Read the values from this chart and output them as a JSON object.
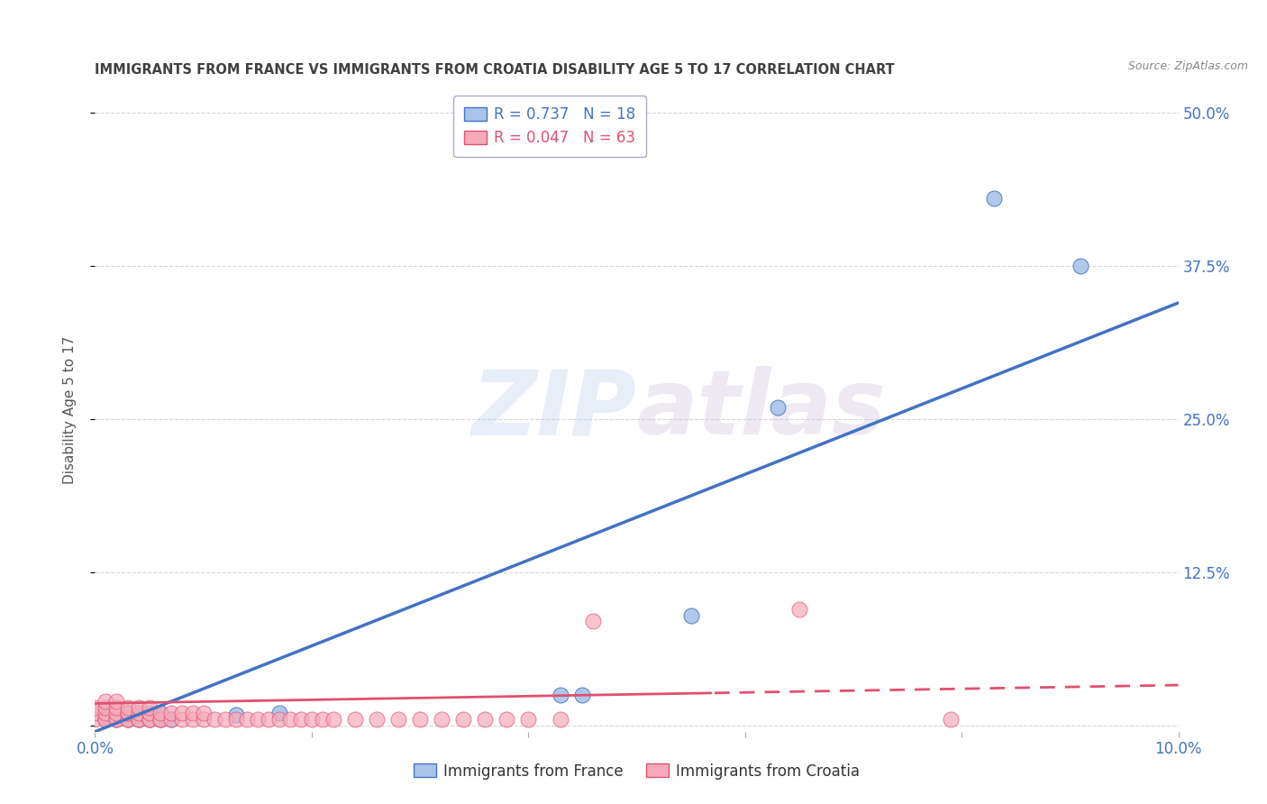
{
  "title": "IMMIGRANTS FROM FRANCE VS IMMIGRANTS FROM CROATIA DISABILITY AGE 5 TO 17 CORRELATION CHART",
  "source": "Source: ZipAtlas.com",
  "ylabel": "Disability Age 5 to 17",
  "xlim": [
    0,
    0.1
  ],
  "ylim": [
    -0.005,
    0.52
  ],
  "france_R": 0.737,
  "france_N": 18,
  "croatia_R": 0.047,
  "croatia_N": 63,
  "france_color": "#A8C4E8",
  "croatia_color": "#F5AABB",
  "france_line_color": "#4472C4",
  "croatia_line_color": "#E05070",
  "croatia_line_dash_start": 0.057,
  "background_color": "#FFFFFF",
  "grid_color": "#CCCCCC",
  "title_color": "#404040",
  "axis_label_color": "#4472C4",
  "axis_tick_color": "#4472C4",
  "france_points_x": [
    0.001,
    0.001,
    0.002,
    0.003,
    0.004,
    0.004,
    0.005,
    0.006,
    0.006,
    0.007,
    0.013,
    0.017,
    0.043,
    0.045,
    0.055,
    0.063,
    0.083,
    0.091
  ],
  "france_points_y": [
    0.005,
    0.008,
    0.005,
    0.005,
    0.005,
    0.008,
    0.005,
    0.005,
    0.01,
    0.005,
    0.009,
    0.01,
    0.025,
    0.025,
    0.09,
    0.26,
    0.43,
    0.375
  ],
  "croatia_points_x": [
    0.0,
    0.0,
    0.0,
    0.001,
    0.001,
    0.001,
    0.001,
    0.001,
    0.001,
    0.002,
    0.002,
    0.002,
    0.002,
    0.002,
    0.003,
    0.003,
    0.003,
    0.003,
    0.003,
    0.004,
    0.004,
    0.004,
    0.004,
    0.005,
    0.005,
    0.005,
    0.005,
    0.006,
    0.006,
    0.006,
    0.007,
    0.007,
    0.008,
    0.008,
    0.009,
    0.009,
    0.01,
    0.01,
    0.011,
    0.012,
    0.013,
    0.014,
    0.015,
    0.016,
    0.017,
    0.018,
    0.019,
    0.02,
    0.021,
    0.022,
    0.024,
    0.026,
    0.028,
    0.03,
    0.032,
    0.034,
    0.036,
    0.038,
    0.04,
    0.043,
    0.046,
    0.065,
    0.079
  ],
  "croatia_points_y": [
    0.005,
    0.01,
    0.015,
    0.005,
    0.005,
    0.005,
    0.01,
    0.015,
    0.02,
    0.005,
    0.005,
    0.01,
    0.015,
    0.02,
    0.005,
    0.005,
    0.01,
    0.01,
    0.015,
    0.005,
    0.005,
    0.01,
    0.015,
    0.005,
    0.005,
    0.01,
    0.015,
    0.005,
    0.005,
    0.01,
    0.005,
    0.01,
    0.005,
    0.01,
    0.005,
    0.01,
    0.005,
    0.01,
    0.005,
    0.005,
    0.005,
    0.005,
    0.005,
    0.005,
    0.005,
    0.005,
    0.005,
    0.005,
    0.005,
    0.005,
    0.005,
    0.005,
    0.005,
    0.005,
    0.005,
    0.005,
    0.005,
    0.005,
    0.005,
    0.005,
    0.085,
    0.095,
    0.005
  ],
  "watermark_zip": "ZIP",
  "watermark_atlas": "atlas",
  "legend_box_color": "#FFFFFF",
  "legend_border_color": "#AAAACC",
  "france_line_intercept": -0.005,
  "france_line_slope": 3.5,
  "croatia_line_intercept": 0.018,
  "croatia_line_slope": 0.15
}
